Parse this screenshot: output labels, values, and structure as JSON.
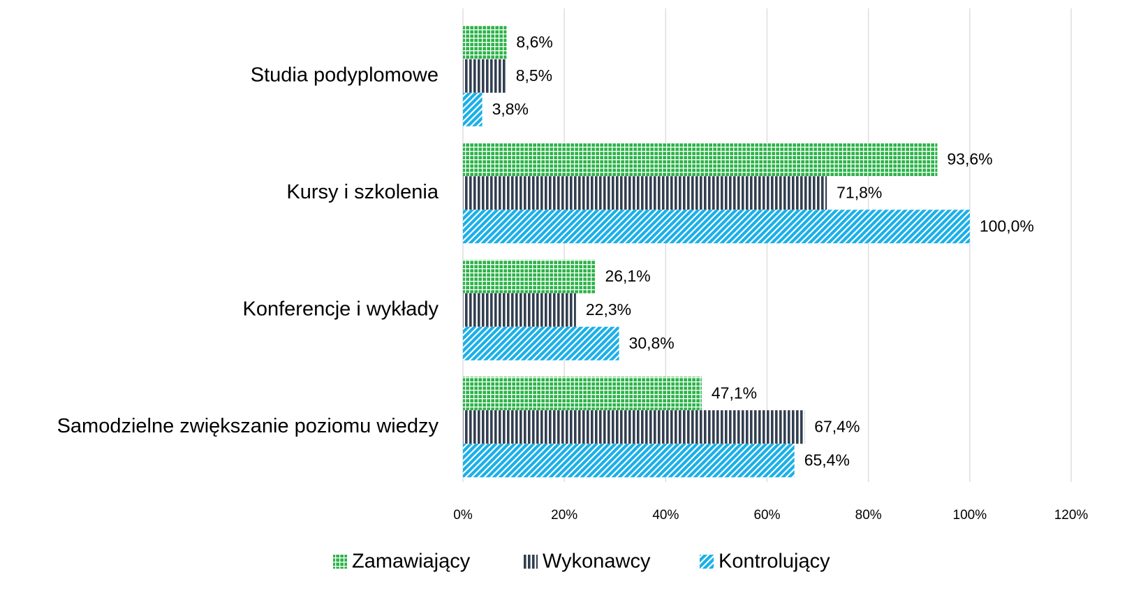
{
  "chart_data": {
    "type": "bar",
    "orientation": "horizontal",
    "categories": [
      "Studia podyplomowe",
      "Kursy i szkolenia",
      "Konferencje i wykłady",
      "Samodzielne zwiększanie poziomu wiedzy"
    ],
    "series": [
      {
        "name": "Zamawiający",
        "color": "#2db34a",
        "pattern": "grid",
        "values": [
          8.6,
          93.6,
          26.1,
          47.1
        ],
        "value_labels": [
          "8,6%",
          "93,6%",
          "26,1%",
          "47,1%"
        ]
      },
      {
        "name": "Wykonawcy",
        "color": "#333f50",
        "pattern": "vertical",
        "values": [
          8.5,
          71.8,
          22.3,
          67.4
        ],
        "value_labels": [
          "8,5%",
          "71,8%",
          "22,3%",
          "67,4%"
        ]
      },
      {
        "name": "Kontrolujący",
        "color": "#1ab0e8",
        "pattern": "diagonal",
        "values": [
          3.8,
          100.0,
          30.8,
          65.4
        ],
        "value_labels": [
          "3,8%",
          "100,0%",
          "30,8%",
          "65,4%"
        ]
      }
    ],
    "xlim": [
      0,
      120
    ],
    "xticks": [
      {
        "value": 0,
        "label": "0%"
      },
      {
        "value": 20,
        "label": "20%"
      },
      {
        "value": 40,
        "label": "40%"
      },
      {
        "value": 60,
        "label": "60%"
      },
      {
        "value": 80,
        "label": "80%"
      },
      {
        "value": 100,
        "label": "100%"
      },
      {
        "value": 120,
        "label": "120%"
      }
    ],
    "grid": true,
    "legend": "bottom"
  }
}
